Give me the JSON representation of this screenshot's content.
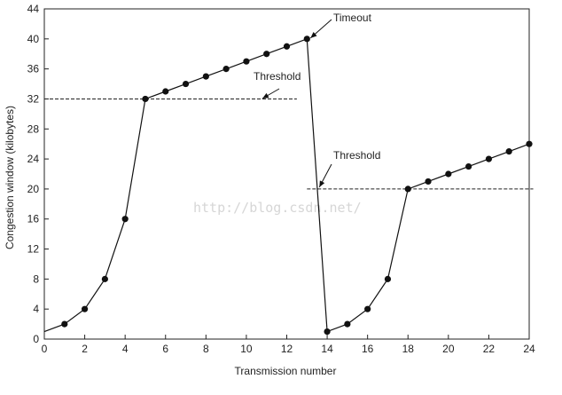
{
  "chart_data": {
    "type": "line",
    "title": "",
    "xlabel": "Transmission number",
    "ylabel": "Congestion window (kilobytes)",
    "xlim": [
      0,
      24
    ],
    "ylim": [
      0,
      44
    ],
    "xticks": [
      0,
      2,
      4,
      6,
      8,
      10,
      12,
      14,
      16,
      18,
      20,
      22,
      24
    ],
    "yticks": [
      0,
      4,
      8,
      12,
      16,
      20,
      24,
      28,
      32,
      36,
      40,
      44
    ],
    "grid": false,
    "series": [
      {
        "x": [
          0,
          1,
          2,
          3,
          4,
          5,
          6,
          7,
          8,
          9,
          10,
          11,
          12,
          13,
          14,
          15,
          16,
          17,
          18,
          19,
          20,
          21,
          22,
          23,
          24
        ],
        "y": [
          1,
          2,
          4,
          8,
          16,
          32,
          33,
          34,
          35,
          36,
          37,
          38,
          39,
          40,
          1,
          2,
          4,
          8,
          20,
          21,
          22,
          23,
          24,
          25,
          26
        ]
      }
    ],
    "thresholds": [
      {
        "label": "Threshold",
        "y": 32,
        "x_from": 0,
        "x_to": 12.5
      },
      {
        "label": "Threshold",
        "y": 20,
        "x_from": 13,
        "x_to": 24.2
      }
    ],
    "annotations": [
      {
        "text": "Timeout",
        "x": 13,
        "y": 40
      },
      {
        "text": "Threshold",
        "x": 11,
        "y": 32
      },
      {
        "text": "Threshold",
        "x": 13.7,
        "y": 20
      }
    ],
    "watermark": "http://blog.csdn.net/"
  }
}
